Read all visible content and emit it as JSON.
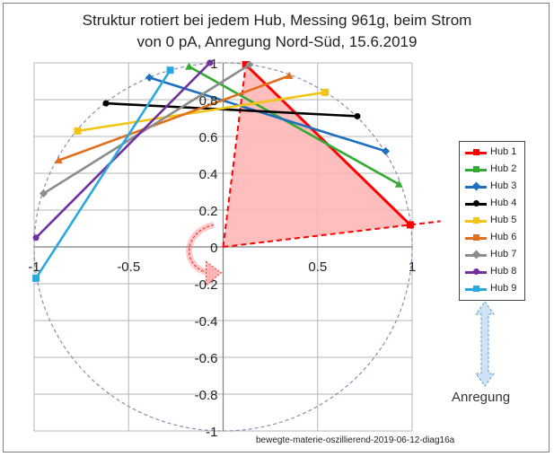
{
  "title_line1": "Struktur rotiert bei jedem Hub, Messing 961g, beim Strom",
  "title_line2": "von  0 pA, Anregung Nord-Süd, 15.6.2019",
  "excitation_label": "Anregung",
  "source_label": "bewegte-materie-oszillierend-2019-06-12-diag16a",
  "chart_data": {
    "type": "line",
    "title": "Struktur rotiert bei jedem Hub, Messing 961g, beim Strom von  0 pA, Anregung Nord-Süd, 15.6.2019",
    "xlim": [
      -1,
      1
    ],
    "ylim": [
      -1,
      1
    ],
    "x_ticks": [
      -1,
      -0.5,
      0,
      0.5,
      1
    ],
    "y_ticks": [
      -1,
      -0.8,
      -0.6,
      -0.4,
      -0.2,
      0,
      0.2,
      0.4,
      0.6,
      0.8,
      1
    ],
    "x_tick_labels": [
      "-1",
      "-0.5",
      "0",
      "0.5",
      "1"
    ],
    "y_tick_labels": [
      "-1",
      "-0.8",
      "-0.6",
      "-0.4",
      "-0.2",
      "0",
      "0.2",
      "0.4",
      "0.6",
      "0.8",
      "1"
    ],
    "grid": true,
    "legend_position": "right",
    "unit_circle": true,
    "sector": {
      "from": [
        0.99,
        0.12
      ],
      "to": [
        0.12,
        0.99
      ]
    },
    "series": [
      {
        "name": "Hub 1",
        "color": "#ff0000",
        "marker": "square",
        "x": [
          0.12,
          0.99
        ],
        "y": [
          0.99,
          0.12
        ]
      },
      {
        "name": "Hub 2",
        "color": "#33aa33",
        "marker": "triangle",
        "x": [
          -0.18,
          0.93
        ],
        "y": [
          0.98,
          0.34
        ]
      },
      {
        "name": "Hub 3",
        "color": "#1f6fbf",
        "marker": "diamond",
        "x": [
          -0.39,
          0.86
        ],
        "y": [
          0.92,
          0.52
        ]
      },
      {
        "name": "Hub 4",
        "color": "#000000",
        "marker": "circle",
        "x": [
          -0.62,
          0.71
        ],
        "y": [
          0.78,
          0.71
        ]
      },
      {
        "name": "Hub 5",
        "color": "#f2c414",
        "marker": "square",
        "x": [
          -0.77,
          0.54
        ],
        "y": [
          0.63,
          0.84
        ]
      },
      {
        "name": "Hub 6",
        "color": "#e07020",
        "marker": "triangle",
        "x": [
          -0.87,
          0.35
        ],
        "y": [
          0.47,
          0.93
        ]
      },
      {
        "name": "Hub 7",
        "color": "#8c8c8c",
        "marker": "diamond",
        "x": [
          -0.95,
          0.14
        ],
        "y": [
          0.29,
          0.99
        ]
      },
      {
        "name": "Hub 8",
        "color": "#7030a0",
        "marker": "circle",
        "x": [
          -0.99,
          -0.07
        ],
        "y": [
          0.05,
          1.0
        ]
      },
      {
        "name": "Hub 9",
        "color": "#2aa8e0",
        "marker": "square",
        "x": [
          -0.99,
          -0.28
        ],
        "y": [
          -0.17,
          0.96
        ]
      }
    ]
  }
}
